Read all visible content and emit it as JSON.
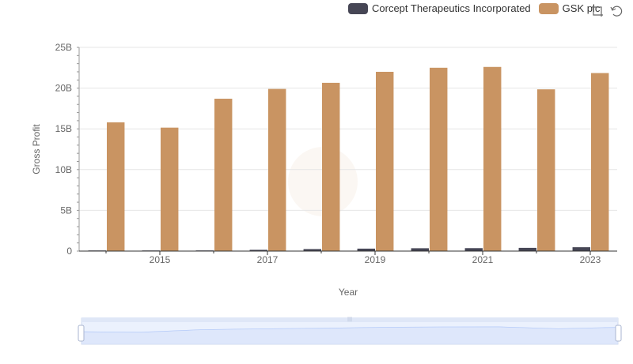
{
  "legend": [
    {
      "name": "Corcept Therapeutics Incorporated",
      "color": "#464655"
    },
    {
      "name": "GSK plc",
      "color": "#c99462"
    }
  ],
  "toolbox": [
    {
      "icon": "zoom-icon"
    },
    {
      "icon": "restore-icon"
    }
  ],
  "chart_data": {
    "type": "bar",
    "xlabel": "Year",
    "ylabel": "Gross Profit",
    "categories": [
      "2014",
      "2015",
      "2016",
      "2017",
      "2018",
      "2019",
      "2020",
      "2021",
      "2022",
      "2023"
    ],
    "x_tick_labels": [
      "2015",
      "2017",
      "2019",
      "2021",
      "2023"
    ],
    "y_tick_labels": [
      "0",
      "5B",
      "10B",
      "15B",
      "20B",
      "25B"
    ],
    "ylim": [
      0,
      25000000000
    ],
    "grid": true,
    "legend_position": "top-right",
    "series": [
      {
        "name": "Corcept Therapeutics Incorporated",
        "color": "#464655",
        "values": [
          25000000,
          45000000,
          80000000,
          155000000,
          248000000,
          302000000,
          350000000,
          361000000,
          397000000,
          474000000
        ]
      },
      {
        "name": "GSK plc",
        "color": "#c99462",
        "values": [
          15800000000,
          15150000000,
          18700000000,
          19900000000,
          20650000000,
          22000000000,
          22500000000,
          22600000000,
          19850000000,
          21850000000
        ]
      }
    ]
  },
  "data_zoom": {
    "start_percent": 0,
    "end_percent": 100
  }
}
